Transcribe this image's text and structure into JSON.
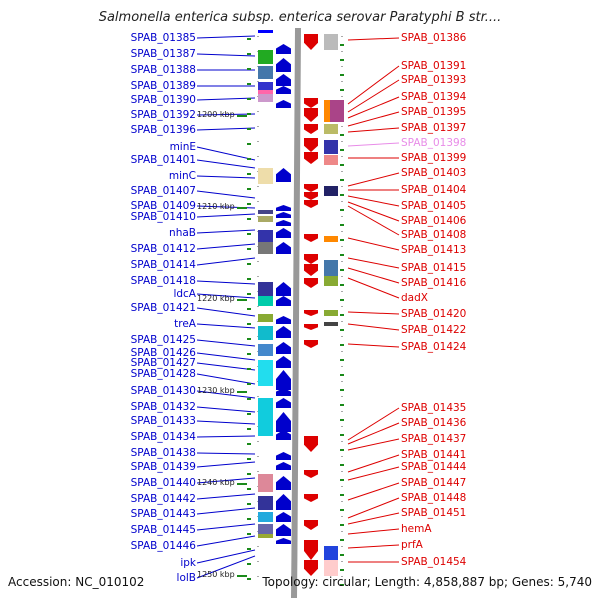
{
  "title": "Salmonella enterica subsp. enterica serovar Paratyphi B str....",
  "footer": {
    "accession": "Accession: NC_010102",
    "summary": "Topology: circular; Length: 4,858,887 bp; Genes: 5,740"
  },
  "scale_marks": [
    "1200 kbp",
    "1210 kbp",
    "1220 kbp",
    "1230 kbp",
    "1240 kbp",
    "1250 kbp"
  ],
  "left_labels": [
    "SPAB_01385",
    "SPAB_01387",
    "SPAB_01388",
    "SPAB_01389",
    "SPAB_01390",
    "SPAB_01392",
    "SPAB_01396",
    "minE",
    "SPAB_01401",
    "minC",
    "SPAB_01407",
    "SPAB_01409",
    "SPAB_01410",
    "nhaB",
    "SPAB_01412",
    "SPAB_01414",
    "SPAB_01418",
    "ldcA",
    "SPAB_01421",
    "treA",
    "SPAB_01425",
    "SPAB_01426",
    "SPAB_01427",
    "SPAB_01428",
    "SPAB_01430",
    "SPAB_01432",
    "SPAB_01433",
    "SPAB_01434",
    "SPAB_01438",
    "SPAB_01439",
    "SPAB_01440",
    "SPAB_01442",
    "SPAB_01443",
    "SPAB_01445",
    "SPAB_01446",
    "ipk",
    "lolB"
  ],
  "right_labels": [
    "SPAB_01386",
    "SPAB_01391",
    "SPAB_01393",
    "SPAB_01394",
    "SPAB_01395",
    "SPAB_01397",
    "SPAB_01398",
    "SPAB_01399",
    "SPAB_01403",
    "SPAB_01404",
    "SPAB_01405",
    "SPAB_01406",
    "SPAB_01408",
    "SPAB_01413",
    "SPAB_01415",
    "SPAB_01416",
    "dadX",
    "SPAB_01420",
    "SPAB_01422",
    "SPAB_01424",
    "SPAB_01435",
    "SPAB_01436",
    "SPAB_01437",
    "SPAB_01441",
    "SPAB_01444",
    "SPAB_01447",
    "SPAB_01448",
    "SPAB_01451",
    "hemA",
    "prfA",
    "SPAB_01454"
  ],
  "colors": {
    "forward": "#0000cc",
    "reverse": "#dd0000",
    "highlight": "#e88ce8",
    "backbone": "#999999",
    "tick": "#1a8a1a"
  }
}
